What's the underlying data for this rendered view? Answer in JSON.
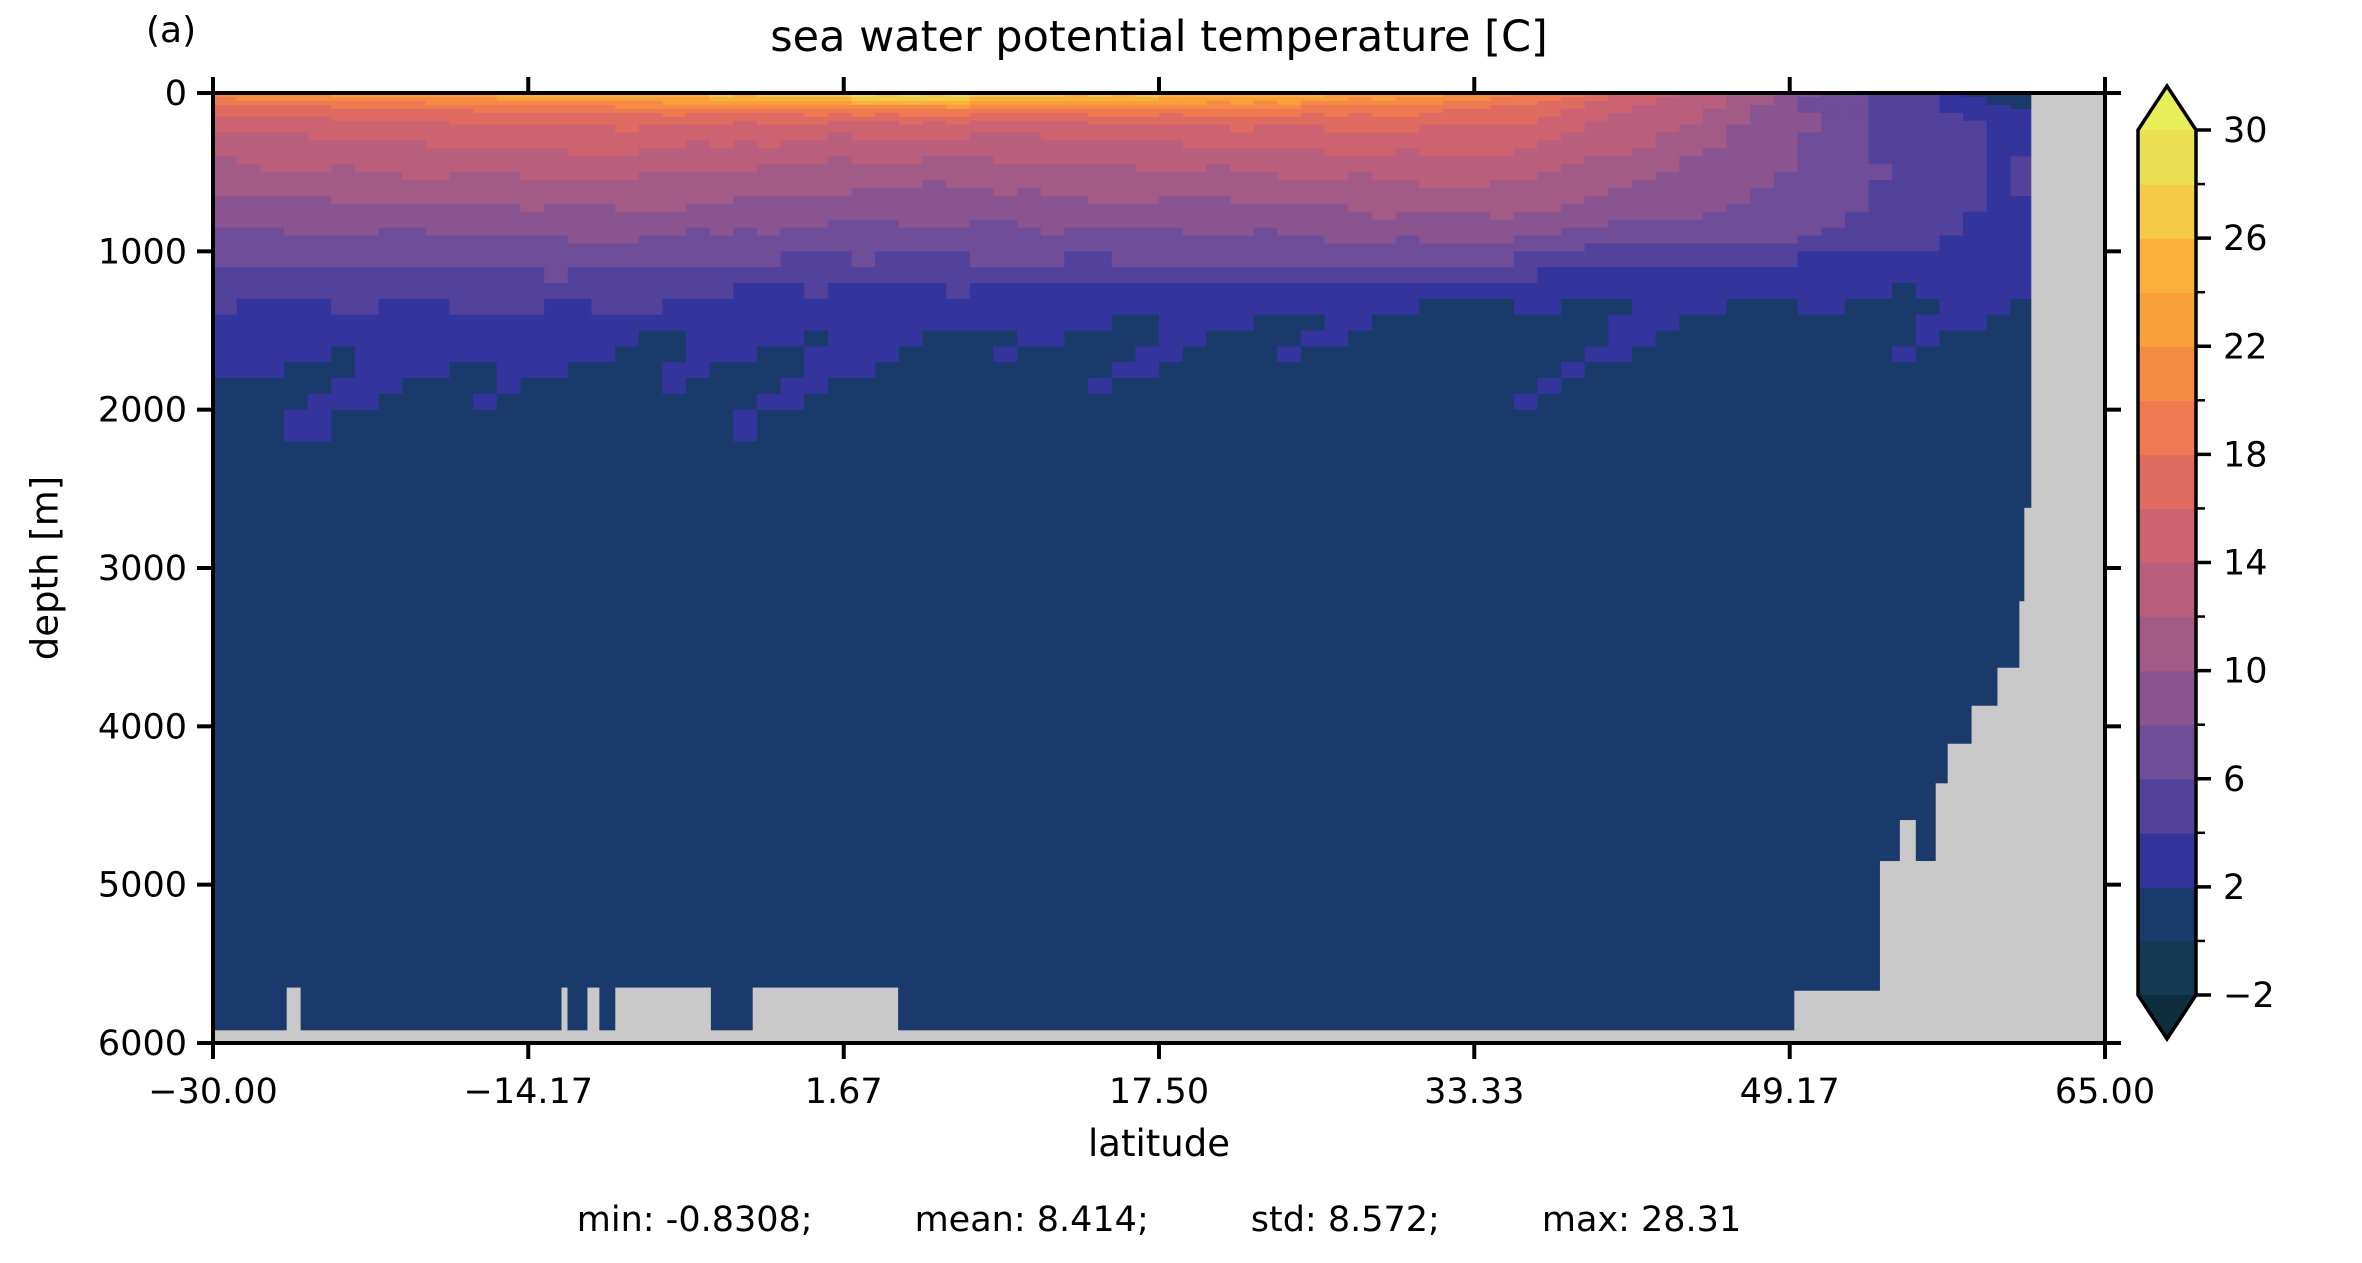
{
  "figure": {
    "panel_label": "(a)",
    "title": "sea water potential temperature [C]"
  },
  "axes": {
    "xlabel": "latitude",
    "ylabel": "depth [m]",
    "xticks": [
      {
        "value": -30,
        "label": "−30.00"
      },
      {
        "value": -14.17,
        "label": "−14.17"
      },
      {
        "value": 1.67,
        "label": "1.67"
      },
      {
        "value": 17.5,
        "label": "17.50"
      },
      {
        "value": 33.33,
        "label": "33.33"
      },
      {
        "value": 49.17,
        "label": "49.17"
      },
      {
        "value": 65,
        "label": "65.00"
      }
    ],
    "yticks": [
      {
        "value": 0,
        "label": "0"
      },
      {
        "value": 1000,
        "label": "1000"
      },
      {
        "value": 2000,
        "label": "2000"
      },
      {
        "value": 3000,
        "label": "3000"
      },
      {
        "value": 4000,
        "label": "4000"
      },
      {
        "value": 5000,
        "label": "5000"
      },
      {
        "value": 6000,
        "label": "6000"
      }
    ]
  },
  "colorbar": {
    "major_ticks": [
      {
        "value": 30,
        "label": "30"
      },
      {
        "value": 26,
        "label": "26"
      },
      {
        "value": 22,
        "label": "22"
      },
      {
        "value": 18,
        "label": "18"
      },
      {
        "value": 14,
        "label": "14"
      },
      {
        "value": 10,
        "label": "10"
      },
      {
        "value": 6,
        "label": "6"
      },
      {
        "value": 2,
        "label": "2"
      },
      {
        "value": -2,
        "label": "−2"
      }
    ],
    "minor_tick_values": [
      28,
      24,
      20,
      16,
      12,
      8,
      4,
      0
    ]
  },
  "stats_line": {
    "segments": [
      "min: -0.8308;",
      "mean: 8.414;",
      "std: 8.572;",
      "max: 28.31"
    ]
  },
  "chart_data": {
    "type": "heatmap",
    "title": "sea water potential temperature [C]",
    "xlabel": "latitude",
    "ylabel": "depth [m]",
    "xlim": [
      -30,
      65
    ],
    "ylim": [
      0,
      6000
    ],
    "y_inverted": true,
    "units": "C",
    "stats": {
      "min": -0.8308,
      "mean": 8.414,
      "std": 8.572,
      "max": 28.31
    },
    "levels": [
      -2,
      0,
      2,
      4,
      6,
      8,
      10,
      12,
      14,
      16,
      18,
      20,
      22,
      24,
      26,
      28,
      30
    ],
    "band_colors": [
      "#133a52",
      "#1b3a6c",
      "#34359c",
      "#53429b",
      "#6f4d98",
      "#8a5491",
      "#a25a87",
      "#b95e7c",
      "#cd6370",
      "#e06b61",
      "#ef7a51",
      "#f68b43",
      "#f99f3b",
      "#f9b13c",
      "#f5ca46",
      "#ebdf53"
    ],
    "extend_under_color": "#0e2d3d",
    "extend_over_color": "#e8ee58",
    "mask_color": "#c9c9c9",
    "grid": {
      "lats": [
        -30,
        -20,
        -10,
        0,
        5,
        10,
        20,
        30,
        35,
        40,
        45,
        50,
        54,
        57,
        59,
        61,
        65
      ],
      "depths": [
        0,
        50,
        100,
        150,
        200,
        300,
        400,
        500,
        700,
        900,
        1100,
        1300,
        1500,
        1800,
        2200,
        3000,
        6000
      ],
      "temps": [
        [
          21.5,
          19.0,
          17.0,
          16.0,
          15.0,
          13.5,
          12.5,
          11.5,
          9.5,
          7.5,
          5.8,
          4.4,
          2.6,
          1.9,
          1.7,
          1.2,
          0.8
        ],
        [
          24.0,
          20.5,
          18.0,
          16.5,
          15.5,
          14.0,
          13.0,
          12.0,
          10.0,
          8.0,
          6.0,
          4.5,
          2.55,
          1.9,
          1.7,
          1.2,
          0.8
        ],
        [
          26.0,
          22.0,
          19.5,
          17.5,
          16.5,
          15.0,
          13.8,
          12.6,
          10.4,
          8.2,
          6.2,
          4.6,
          2.4,
          1.85,
          1.7,
          1.2,
          0.8
        ],
        [
          27.5,
          24.5,
          20.0,
          17.0,
          15.5,
          13.8,
          12.4,
          11.2,
          9.2,
          7.4,
          5.6,
          3.4,
          2.15,
          1.78,
          1.65,
          1.2,
          0.8
        ],
        [
          29.3,
          26.0,
          20.5,
          17.2,
          15.4,
          13.6,
          12.2,
          11.0,
          9.0,
          7.2,
          5.4,
          3.2,
          2.1,
          1.78,
          1.65,
          1.2,
          0.8
        ],
        [
          27.8,
          24.8,
          20.2,
          17.2,
          15.4,
          13.6,
          12.4,
          11.2,
          9.2,
          7.4,
          5.6,
          3.0,
          2.0,
          1.75,
          1.65,
          1.2,
          0.8
        ],
        [
          26.0,
          23.0,
          19.8,
          17.6,
          16.2,
          14.4,
          13.0,
          11.8,
          9.8,
          7.8,
          5.8,
          2.6,
          1.9,
          1.72,
          1.6,
          1.2,
          0.8
        ],
        [
          23.5,
          21.2,
          19.2,
          17.8,
          16.6,
          15.2,
          14.0,
          12.8,
          10.6,
          8.4,
          6.0,
          2.2,
          1.8,
          1.7,
          1.6,
          1.2,
          0.8
        ],
        [
          21.0,
          19.2,
          17.8,
          16.8,
          16.0,
          14.8,
          13.8,
          12.8,
          10.8,
          8.4,
          5.6,
          2.1,
          1.8,
          1.7,
          1.6,
          1.2,
          0.8
        ],
        [
          16.5,
          15.6,
          14.8,
          14.2,
          13.6,
          12.6,
          11.8,
          11.0,
          9.6,
          7.4,
          3.4,
          1.98,
          1.85,
          1.7,
          1.6,
          1.2,
          0.9
        ],
        [
          13.0,
          12.6,
          12.2,
          11.8,
          11.4,
          10.8,
          10.2,
          9.6,
          8.6,
          6.8,
          3.3,
          1.95,
          1.85,
          1.7,
          1.6,
          1.2,
          0.9
        ],
        [
          8.5,
          8.4,
          8.3,
          8.2,
          8.1,
          7.9,
          7.7,
          7.5,
          7.0,
          6.0,
          3.2,
          1.95,
          1.85,
          1.7,
          1.6,
          1.2,
          0.9
        ],
        [
          5.5,
          5.6,
          5.7,
          5.8,
          5.8,
          5.8,
          5.7,
          5.6,
          5.3,
          4.8,
          3.1,
          1.95,
          1.85,
          1.7,
          1.6,
          1.2,
          0.9
        ],
        [
          3.5,
          3.8,
          4.1,
          4.3,
          4.5,
          4.6,
          4.6,
          4.5,
          4.3,
          4.0,
          3.3,
          2.05,
          1.9,
          1.7,
          1.6,
          1.2,
          0.9
        ],
        [
          0.9,
          1.8,
          2.6,
          3.2,
          3.6,
          4.0,
          4.1,
          4.0,
          3.8,
          3.5,
          3.0,
          2.0,
          1.8,
          1.65,
          1.55,
          1.2,
          0.9
        ],
        [
          -0.5,
          0.6,
          1.8,
          2.6,
          3.2,
          3.9,
          4.0,
          3.95,
          3.8,
          3.4,
          2.9,
          2.0,
          1.75,
          1.6,
          1.5,
          1.2,
          0.8
        ],
        [
          -0.5,
          0.6,
          1.8,
          2.6,
          3.2,
          3.9,
          4.0,
          3.95,
          3.8,
          3.4,
          2.9,
          2.0,
          1.75,
          1.6,
          1.5,
          1.2,
          0.8
        ]
      ]
    },
    "mask_regions": [
      [
        61.3,
        65,
        0,
        6000
      ],
      [
        60.95,
        65,
        2620,
        6000
      ],
      [
        60.7,
        65,
        3210,
        6000
      ],
      [
        59.6,
        65,
        3630,
        6000
      ],
      [
        58.3,
        65,
        3870,
        6000
      ],
      [
        57.1,
        65,
        4110,
        6000
      ],
      [
        56.5,
        65,
        4360,
        6000
      ],
      [
        55.5,
        65,
        4851,
        6000
      ],
      [
        54.7,
        55.5,
        4592,
        6000
      ],
      [
        53.7,
        65,
        4851,
        6000
      ],
      [
        49.4,
        65,
        5670,
        6000
      ],
      [
        -30,
        65,
        5920,
        6000
      ],
      [
        -26.3,
        -25.6,
        5650,
        6000
      ],
      [
        -12.5,
        -12.2,
        5650,
        6000
      ],
      [
        -11.2,
        -10.6,
        5650,
        6000
      ],
      [
        -9.8,
        -5.0,
        5650,
        6000
      ],
      [
        -2.9,
        4.4,
        5650,
        6000
      ]
    ]
  }
}
